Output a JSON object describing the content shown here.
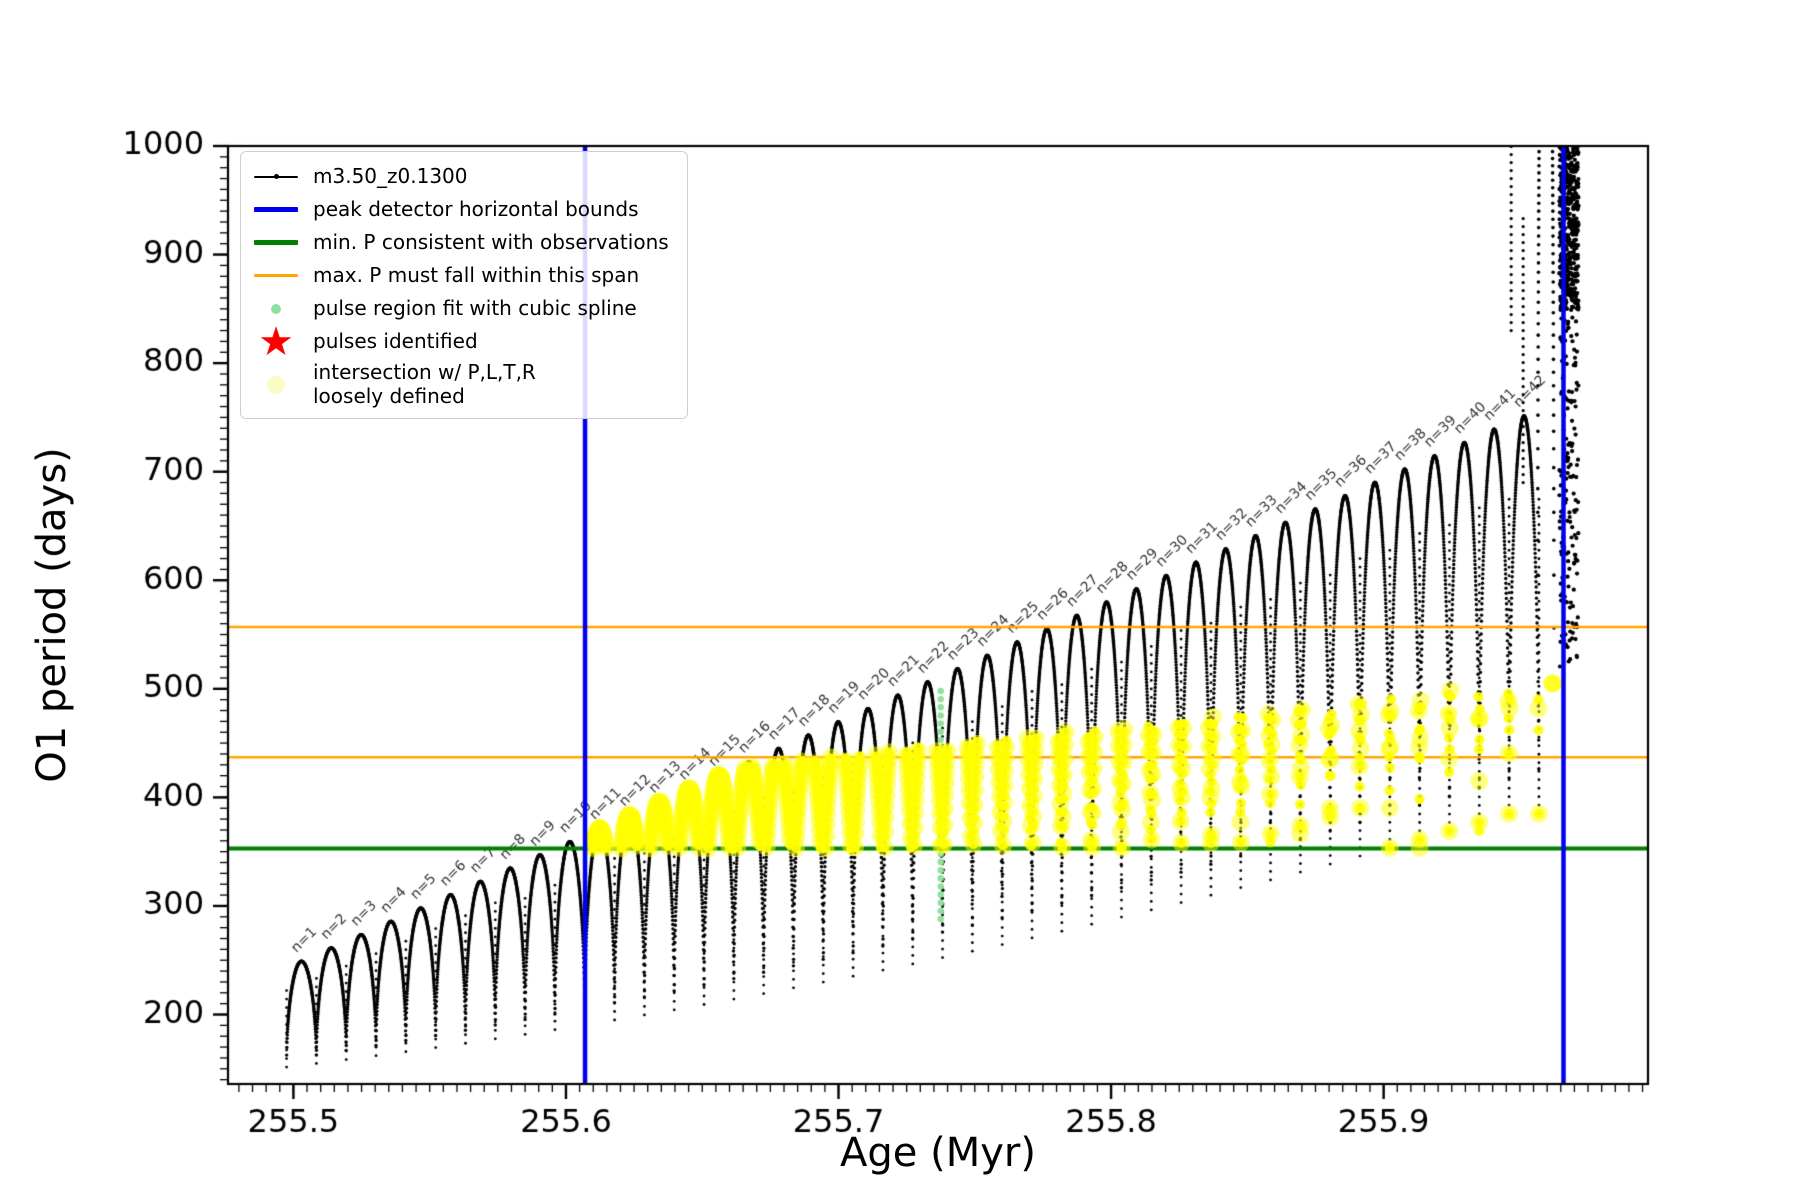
{
  "axis": {
    "xlabel": "Age (Myr)",
    "ylabel": "O1 period (days)"
  },
  "legend": {
    "items": [
      {
        "label": "m3.50_z0.1300"
      },
      {
        "label": "peak detector horizontal bounds"
      },
      {
        "label": "min. P consistent with observations"
      },
      {
        "label": "max. P must fall within this span"
      },
      {
        "label": "pulse region fit with cubic spline"
      },
      {
        "label": "pulses identified"
      },
      {
        "label": "intersection w/ P,L,T,R",
        "label2": "loosely defined"
      }
    ]
  },
  "chart_data": {
    "type": "line",
    "title": "",
    "xlabel": "Age (Myr)",
    "ylabel": "O1 period (days)",
    "series_label": "m3.50_z0.1300",
    "xlim": [
      255.476,
      255.997
    ],
    "ylim": [
      136,
      1000
    ],
    "x_major_ticks": [
      255.5,
      255.6,
      255.7,
      255.8,
      255.9
    ],
    "x_tick_labels": [
      "255.5",
      "255.6",
      "255.7",
      "255.8",
      "255.9"
    ],
    "x_minor_step": 0.005,
    "y_major_ticks": [
      200,
      300,
      400,
      500,
      600,
      700,
      800,
      900,
      1000
    ],
    "y_tick_labels": [
      "200",
      "300",
      "400",
      "500",
      "600",
      "700",
      "800",
      "900",
      "1000"
    ],
    "y_minor_step": 10,
    "grid": false,
    "legend_position": "upper-left",
    "colors": {
      "black": "#000000",
      "blue": "#0000ee",
      "green": "#007f00",
      "orange": "#ffa500",
      "yellow": "#ffff00",
      "pale_yellow": "#fbfbc8",
      "light_green": "#90e0a0",
      "red": "#ff0000"
    },
    "pulses": {
      "count": 42,
      "label_prefix": "n=",
      "x_first_min": 255.4975,
      "spacing": 0.01094,
      "peak_start": 249,
      "peak_slope": 1120,
      "min_quad": [
        150,
        136,
        103
      ]
    },
    "vertical_lines_blue": [
      255.607,
      255.966
    ],
    "horizontal_line_green": 353,
    "horizontal_lines_orange": [
      437,
      557
    ],
    "spline_region": {
      "x": 255.7375,
      "y_from": 288,
      "y_to": 505,
      "spacing_days": 7.5
    },
    "intersection_band": {
      "y_min": 353,
      "cutoff_ref_x": 255.7,
      "cutoff_at_ref": 437,
      "cutoff_slope": 270,
      "cutoff_max": 512,
      "x_start": 255.61,
      "x_end": 255.9635,
      "extra_points": [
        [
          255.962,
          505
        ]
      ]
    },
    "tail": {
      "arc": {
        "x0": 255.9565,
        "w": 0.006,
        "min": 480,
        "peak": 1400
      },
      "column": {
        "x": [
          255.9645,
          255.9715
        ],
        "y_main": [
          850,
          1000
        ],
        "y_sparse": [
          520,
          850
        ]
      },
      "spikes": [
        {
          "x": 255.9468,
          "y1": 830,
          "y2": 1000
        },
        {
          "x": 255.9512,
          "y1": 690,
          "y2": 935
        }
      ]
    }
  }
}
